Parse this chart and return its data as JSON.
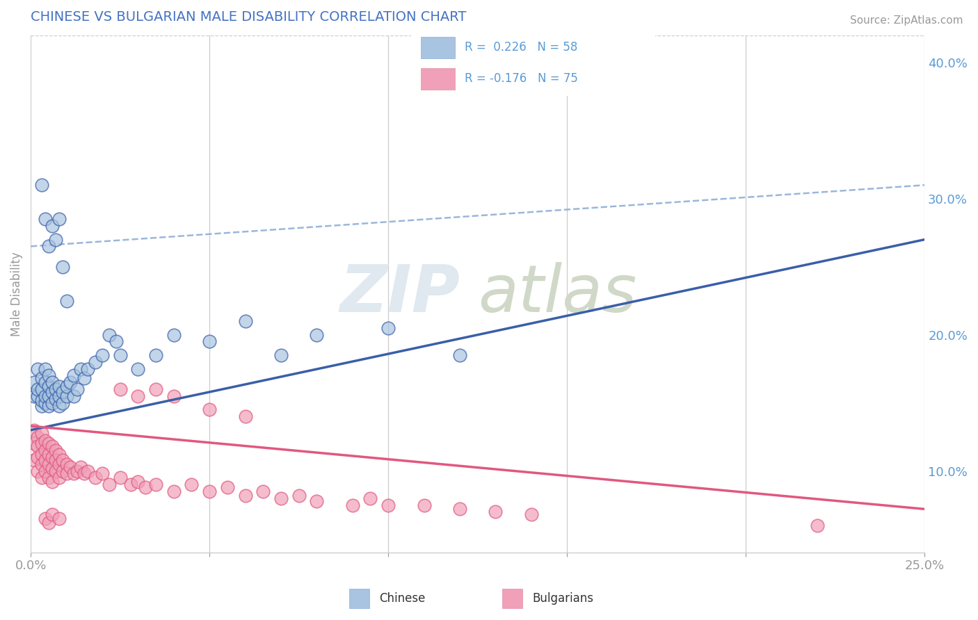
{
  "title": "CHINESE VS BULGARIAN MALE DISABILITY CORRELATION CHART",
  "source_text": "Source: ZipAtlas.com",
  "watermark_text": "ZIP",
  "watermark_text2": "atlas",
  "xlabel": "",
  "ylabel": "Male Disability",
  "xlim": [
    0.0,
    0.25
  ],
  "ylim": [
    0.04,
    0.42
  ],
  "xtick_positions": [
    0.0,
    0.05,
    0.1,
    0.15,
    0.2,
    0.25
  ],
  "xtick_labels": [
    "0.0%",
    "",
    "",
    "",
    "",
    "25.0%"
  ],
  "yticks_right": [
    0.1,
    0.2,
    0.3,
    0.4
  ],
  "ytick_labels_right": [
    "10.0%",
    "20.0%",
    "30.0%",
    "40.0%"
  ],
  "chinese_color": "#A8C4E0",
  "bulgarian_color": "#F0A0B8",
  "chinese_line_color": "#3A5FA8",
  "bulgarian_line_color": "#E05880",
  "dashed_line_color": "#8AAAD4",
  "title_color": "#4472C4",
  "tick_color": "#999999",
  "right_tick_color": "#5B9BD5",
  "chinese_line_x0": 0.0,
  "chinese_line_y0": 0.13,
  "chinese_line_x1": 0.25,
  "chinese_line_y1": 0.27,
  "bulgarian_line_x0": 0.0,
  "bulgarian_line_y0": 0.133,
  "bulgarian_line_x1": 0.25,
  "bulgarian_line_y1": 0.072,
  "dashed_line_x0": 0.0,
  "dashed_line_y0": 0.265,
  "dashed_line_x1": 0.25,
  "dashed_line_y1": 0.31,
  "chinese_x": [
    0.001,
    0.001,
    0.002,
    0.002,
    0.002,
    0.003,
    0.003,
    0.003,
    0.003,
    0.004,
    0.004,
    0.004,
    0.004,
    0.005,
    0.005,
    0.005,
    0.005,
    0.006,
    0.006,
    0.006,
    0.007,
    0.007,
    0.008,
    0.008,
    0.008,
    0.009,
    0.009,
    0.01,
    0.01,
    0.011,
    0.012,
    0.012,
    0.013,
    0.014,
    0.015,
    0.016,
    0.018,
    0.02,
    0.022,
    0.024,
    0.025,
    0.03,
    0.035,
    0.04,
    0.05,
    0.06,
    0.07,
    0.08,
    0.1,
    0.12,
    0.003,
    0.004,
    0.005,
    0.006,
    0.007,
    0.008,
    0.009,
    0.01
  ],
  "chinese_y": [
    0.155,
    0.165,
    0.155,
    0.16,
    0.175,
    0.148,
    0.152,
    0.16,
    0.168,
    0.15,
    0.155,
    0.165,
    0.175,
    0.148,
    0.155,
    0.162,
    0.17,
    0.15,
    0.158,
    0.165,
    0.153,
    0.16,
    0.148,
    0.155,
    0.162,
    0.15,
    0.158,
    0.155,
    0.162,
    0.165,
    0.155,
    0.17,
    0.16,
    0.175,
    0.168,
    0.175,
    0.18,
    0.185,
    0.2,
    0.195,
    0.185,
    0.175,
    0.185,
    0.2,
    0.195,
    0.21,
    0.185,
    0.2,
    0.205,
    0.185,
    0.31,
    0.285,
    0.265,
    0.28,
    0.27,
    0.285,
    0.25,
    0.225
  ],
  "bulgarian_x": [
    0.001,
    0.001,
    0.001,
    0.002,
    0.002,
    0.002,
    0.002,
    0.003,
    0.003,
    0.003,
    0.003,
    0.003,
    0.004,
    0.004,
    0.004,
    0.004,
    0.005,
    0.005,
    0.005,
    0.005,
    0.006,
    0.006,
    0.006,
    0.006,
    0.007,
    0.007,
    0.007,
    0.008,
    0.008,
    0.008,
    0.009,
    0.009,
    0.01,
    0.01,
    0.011,
    0.012,
    0.013,
    0.014,
    0.015,
    0.016,
    0.018,
    0.02,
    0.022,
    0.025,
    0.028,
    0.03,
    0.032,
    0.035,
    0.04,
    0.045,
    0.05,
    0.055,
    0.06,
    0.065,
    0.07,
    0.075,
    0.08,
    0.09,
    0.095,
    0.1,
    0.11,
    0.12,
    0.13,
    0.14,
    0.025,
    0.03,
    0.035,
    0.04,
    0.05,
    0.06,
    0.004,
    0.005,
    0.006,
    0.008,
    0.22
  ],
  "bulgarian_y": [
    0.13,
    0.12,
    0.108,
    0.125,
    0.118,
    0.11,
    0.1,
    0.128,
    0.12,
    0.112,
    0.105,
    0.095,
    0.122,
    0.115,
    0.108,
    0.1,
    0.12,
    0.112,
    0.105,
    0.095,
    0.118,
    0.11,
    0.102,
    0.092,
    0.115,
    0.108,
    0.1,
    0.112,
    0.105,
    0.095,
    0.108,
    0.1,
    0.105,
    0.098,
    0.103,
    0.098,
    0.1,
    0.103,
    0.098,
    0.1,
    0.095,
    0.098,
    0.09,
    0.095,
    0.09,
    0.092,
    0.088,
    0.09,
    0.085,
    0.09,
    0.085,
    0.088,
    0.082,
    0.085,
    0.08,
    0.082,
    0.078,
    0.075,
    0.08,
    0.075,
    0.075,
    0.072,
    0.07,
    0.068,
    0.16,
    0.155,
    0.16,
    0.155,
    0.145,
    0.14,
    0.065,
    0.062,
    0.068,
    0.065,
    0.06
  ]
}
